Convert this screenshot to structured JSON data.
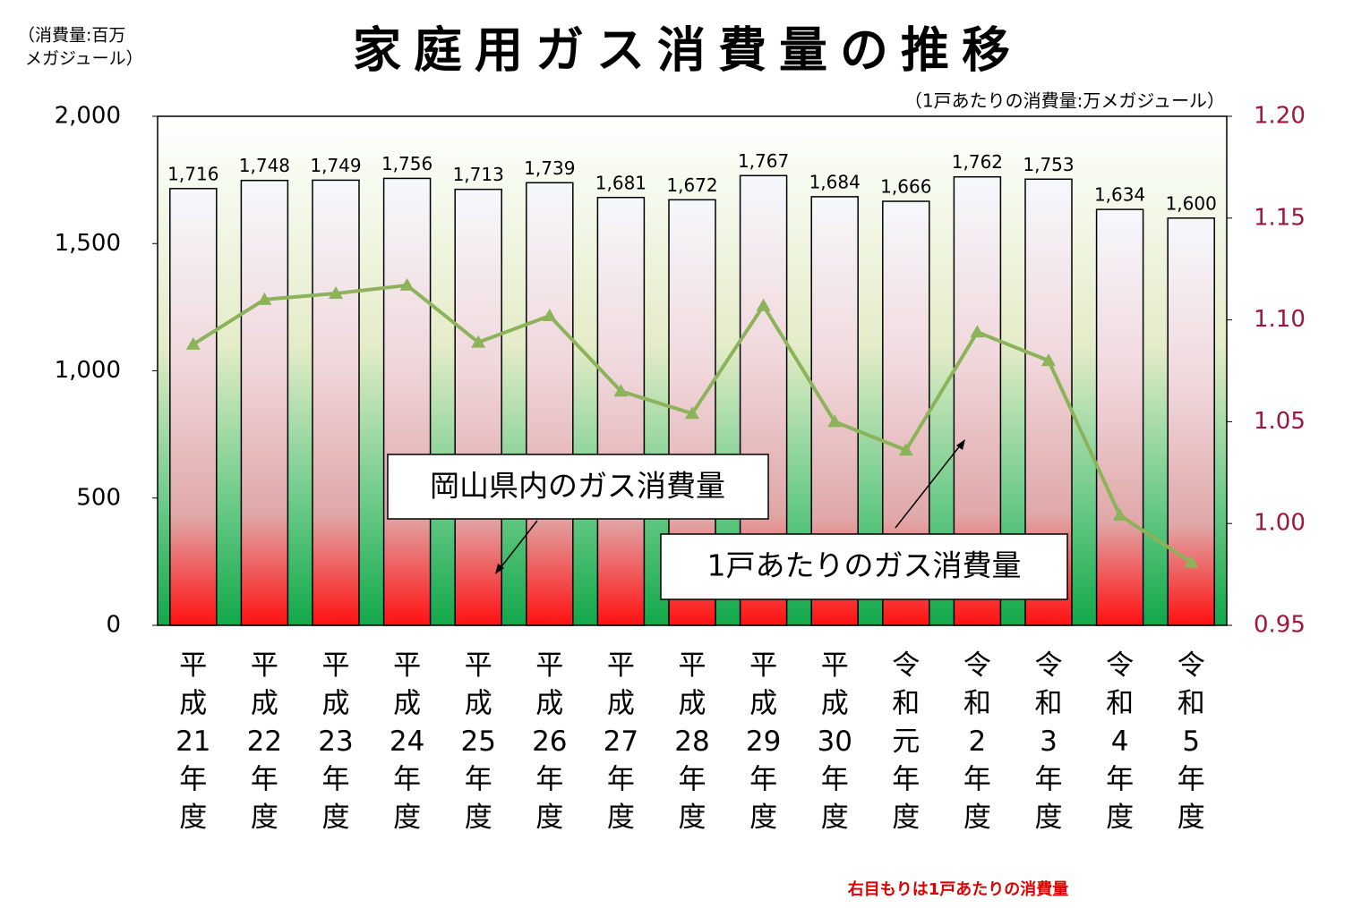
{
  "chart_data": {
    "type": "bar_line",
    "title": "家庭用ガス消費量の推移",
    "units_left": [
      "（消費量:百万",
      "メガジュール）"
    ],
    "units_right": "（1戸あたりの消費量:万メガジュール）",
    "footnote": "右目もりは1戸あたりの消費量",
    "categories": [
      "平成21年度",
      "平成22年度",
      "平成23年度",
      "平成24年度",
      "平成25年度",
      "平成26年度",
      "平成27年度",
      "平成28年度",
      "平成29年度",
      "平成30年度",
      "令和元年度",
      "令和2年度",
      "令和3年度",
      "令和4年度",
      "令和5年度"
    ],
    "series": [
      {
        "name": "岡山県内のガス消費量",
        "type": "bar",
        "color": "#ff2020",
        "values": [
          1716,
          1748,
          1749,
          1756,
          1713,
          1739,
          1681,
          1672,
          1767,
          1684,
          1666,
          1762,
          1753,
          1634,
          1600
        ],
        "value_labels": [
          "1,716",
          "1,748",
          "1,749",
          "1,756",
          "1,713",
          "1,739",
          "1,681",
          "1,672",
          "1,767",
          "1,684",
          "1,666",
          "1,762",
          "1,753",
          "1,634",
          "1,600"
        ]
      },
      {
        "name": "1戸あたりのガス消費量",
        "type": "line",
        "axis": "y2",
        "color": "#8db35a",
        "values": [
          1.088,
          1.11,
          1.113,
          1.117,
          1.089,
          1.102,
          1.065,
          1.054,
          1.107,
          1.05,
          1.036,
          1.094,
          1.08,
          1.004,
          0.981
        ]
      }
    ],
    "ylim": [
      0,
      2000
    ],
    "yticks": [
      0,
      500,
      {
        "value": 1000,
        "label": "1,000"
      },
      {
        "value": 1500,
        "label": "1,500"
      },
      {
        "value": 2000,
        "label": "2,000"
      }
    ],
    "y2lim": [
      0.95,
      1.2
    ],
    "y2ticks": [
      0.95,
      {
        "value": 1,
        "label": "1.00"
      },
      1.05,
      {
        "value": 1.1,
        "label": "1.10"
      },
      1.15,
      {
        "value": 1.2,
        "label": "1.20"
      }
    ],
    "y2color": "#a0153e",
    "grid": false
  }
}
